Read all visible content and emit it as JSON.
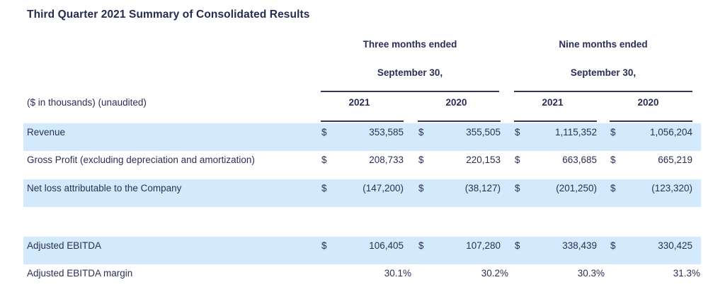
{
  "title": "Third Quarter 2021 Summary of Consolidated Results",
  "table": {
    "meta_label": "($ in thousands) (unaudited)",
    "currency_symbol": "$",
    "groups": [
      {
        "line1": "Three months ended",
        "line2": "September 30,",
        "years": [
          "2021",
          "2020"
        ]
      },
      {
        "line1": "Nine months ended",
        "line2": "September 30,",
        "years": [
          "2021",
          "2020"
        ]
      }
    ],
    "rows": [
      {
        "label": "Revenue",
        "values": [
          "353,585",
          "355,505",
          "1,115,352",
          "1,056,204"
        ],
        "highlighted": true,
        "dollar": true
      },
      {
        "label": "Gross Profit (excluding depreciation and amortization)",
        "values": [
          "208,733",
          "220,153",
          "663,685",
          "665,219"
        ],
        "highlighted": false,
        "dollar": true
      },
      {
        "label": "Net loss attributable to the Company",
        "values": [
          "(147,200)",
          "(38,127)",
          "(201,250)",
          "(123,320)"
        ],
        "highlighted": true,
        "dollar": true
      },
      {
        "label": "Adjusted EBITDA",
        "values": [
          "106,405",
          "107,280",
          "338,439",
          "330,425"
        ],
        "highlighted": true,
        "dollar": true
      },
      {
        "label": "Adjusted EBITDA margin",
        "values": [
          "30.1%",
          "30.2%",
          "30.3%",
          "31.3%"
        ],
        "highlighted": false,
        "dollar": false
      }
    ]
  },
  "colors": {
    "highlight_row": "#d3eafc",
    "text": "#2b2f58",
    "rule": "#35384f"
  }
}
